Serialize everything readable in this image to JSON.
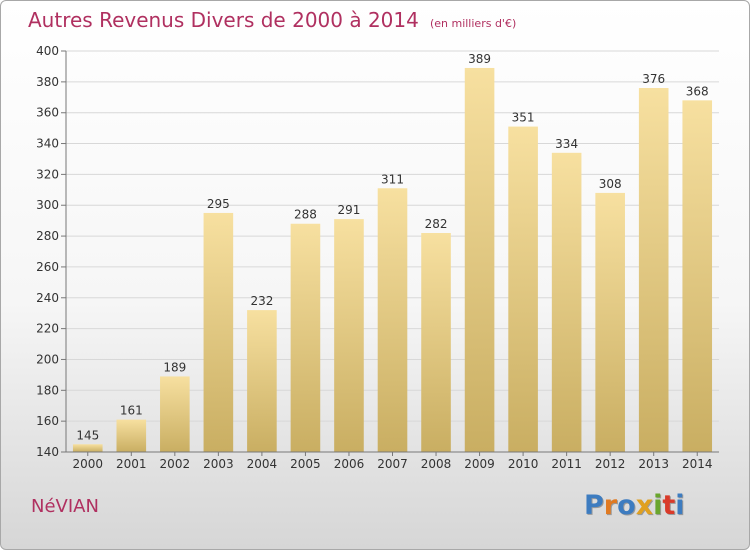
{
  "header": {
    "title": "Autres Revenus Divers de 2000 à 2014",
    "subtitle": "(en milliers d'€)"
  },
  "footer": {
    "commune": "NéVIAN",
    "logo_text": "Proxiti",
    "logo_colors": [
      "#3d7cc0",
      "#e07a22",
      "#3d7cc0",
      "#e0a020",
      "#6aa62e",
      "#d93a2a",
      "#3d7cc0"
    ]
  },
  "colors": {
    "bar_light": "#f7e0a0",
    "bar_dark": "#c9ae62",
    "title": "#b03060",
    "grid": "#d8d8d8"
  },
  "chart_data": {
    "type": "bar",
    "title": "Autres Revenus Divers de 2000 à 2014",
    "subtitle": "(en milliers d'€)",
    "categories": [
      "2000",
      "2001",
      "2002",
      "2003",
      "2004",
      "2005",
      "2006",
      "2007",
      "2008",
      "2009",
      "2010",
      "2011",
      "2012",
      "2013",
      "2014"
    ],
    "values": [
      145,
      161,
      189,
      295,
      232,
      288,
      291,
      311,
      282,
      389,
      351,
      334,
      308,
      376,
      368
    ],
    "ylim": [
      140,
      400
    ],
    "yticks": [
      140,
      160,
      180,
      200,
      220,
      240,
      260,
      280,
      300,
      320,
      340,
      360,
      380,
      400
    ],
    "grid": true,
    "data_labels": true
  }
}
